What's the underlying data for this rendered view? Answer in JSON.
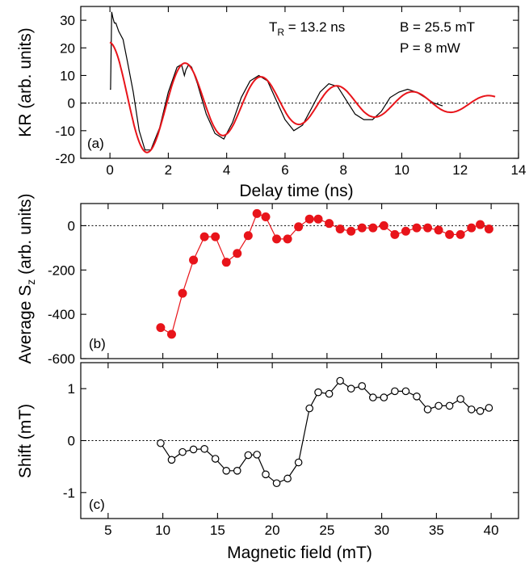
{
  "chart_data": [
    {
      "type": "line",
      "panel_label": "(a)",
      "xlabel": "Delay time (ns)",
      "ylabel": "KR (arb. units)",
      "xlim": [
        -1,
        14
      ],
      "ylim": [
        -20,
        35
      ],
      "xticks": [
        0,
        2,
        4,
        6,
        8,
        10,
        12,
        14
      ],
      "yticks": [
        -20,
        -10,
        0,
        10,
        20,
        30
      ],
      "zero_line": true,
      "annotations": {
        "tr_main": "T",
        "tr_sub": "R",
        "tr_value": " = 13.2 ns",
        "field": "B = 25.5 mT",
        "power": "P = 8 mW"
      },
      "colors": {
        "measured": "#000000",
        "fit": "#e8141a"
      },
      "measured": {
        "x": [
          0,
          0.02,
          0.06,
          0.1,
          0.15,
          0.2,
          0.3,
          0.45,
          0.6,
          0.8,
          1.0,
          1.2,
          1.4,
          1.7,
          2.0,
          2.3,
          2.45,
          2.55,
          2.6,
          2.7,
          2.8,
          3.0,
          3.3,
          3.6,
          3.9,
          4.2,
          4.5,
          4.8,
          5.1,
          5.4,
          5.7,
          6.0,
          6.3,
          6.6,
          6.9,
          7.2,
          7.5,
          7.8,
          8.1,
          8.4,
          8.7,
          9.0,
          9.3,
          9.6,
          9.9,
          10.2,
          10.5,
          10.8,
          11.1,
          11.4
        ],
        "y": [
          5,
          5,
          33,
          31,
          29,
          29,
          26,
          23,
          15,
          4,
          -10,
          -17,
          -17,
          -9,
          4,
          13,
          14,
          10,
          12,
          14,
          13,
          7,
          -4,
          -11,
          -13,
          -7,
          2,
          8,
          10,
          8,
          1,
          -6,
          -10,
          -8,
          -2,
          4,
          7,
          6,
          1,
          -4,
          -6,
          -6,
          -3,
          2,
          4,
          5,
          4,
          2,
          0,
          -1
        ]
      },
      "fit": {
        "amplitude": 22,
        "decay_ns": 6.2,
        "period_ns": 2.6,
        "t_start": 0,
        "t_end": 13.2
      }
    },
    {
      "type": "line",
      "panel_label": "(b)",
      "xlabel": "",
      "ylabel_main": "Average S",
      "ylabel_sub": "z",
      "ylabel_units": " (arb. units)",
      "xlim": [
        2.5,
        42.5
      ],
      "ylim": [
        -600,
        100
      ],
      "xticks": [
        5,
        10,
        15,
        20,
        25,
        30,
        35,
        40
      ],
      "yticks": [
        -600,
        -400,
        -200,
        0
      ],
      "zero_line": true,
      "color": "#e8141a",
      "x": [
        9.8,
        10.8,
        11.8,
        12.8,
        13.8,
        14.8,
        15.8,
        16.8,
        17.8,
        18.6,
        19.4,
        20.4,
        21.4,
        22.4,
        23.4,
        24.2,
        25.2,
        26.2,
        27.2,
        28.2,
        29.2,
        30.2,
        31.2,
        32.2,
        33.2,
        34.2,
        35.2,
        36.2,
        37.2,
        38.2,
        39.0,
        39.8
      ],
      "y": [
        -460,
        -490,
        -305,
        -155,
        -50,
        -50,
        -165,
        -125,
        -45,
        55,
        40,
        -60,
        -60,
        -5,
        30,
        30,
        10,
        -15,
        -25,
        -10,
        -10,
        0,
        -40,
        -25,
        -10,
        -10,
        -20,
        -40,
        -40,
        -10,
        5,
        -15
      ]
    },
    {
      "type": "line",
      "panel_label": "(c)",
      "xlabel": "Magnetic field (mT)",
      "ylabel": "Shift (mT)",
      "xlim": [
        2.5,
        42.5
      ],
      "ylim": [
        -1.5,
        1.5
      ],
      "xticks": [
        5,
        10,
        15,
        20,
        25,
        30,
        35,
        40
      ],
      "yticks": [
        -1,
        0,
        1
      ],
      "zero_line": true,
      "color": "#000000",
      "x": [
        9.8,
        10.8,
        11.8,
        12.8,
        13.8,
        14.8,
        15.8,
        16.8,
        17.8,
        18.6,
        19.4,
        20.4,
        21.4,
        22.4,
        23.4,
        24.2,
        25.2,
        26.2,
        27.2,
        28.2,
        29.2,
        30.2,
        31.2,
        32.2,
        33.2,
        34.2,
        35.2,
        36.2,
        37.2,
        38.2,
        39.0,
        39.8
      ],
      "y": [
        -0.05,
        -0.37,
        -0.22,
        -0.17,
        -0.16,
        -0.35,
        -0.58,
        -0.58,
        -0.28,
        -0.27,
        -0.65,
        -0.82,
        -0.73,
        -0.42,
        0.62,
        0.93,
        0.9,
        1.15,
        1.0,
        1.05,
        0.83,
        0.83,
        0.95,
        0.95,
        0.85,
        0.6,
        0.67,
        0.67,
        0.8,
        0.6,
        0.57,
        0.63
      ]
    }
  ]
}
